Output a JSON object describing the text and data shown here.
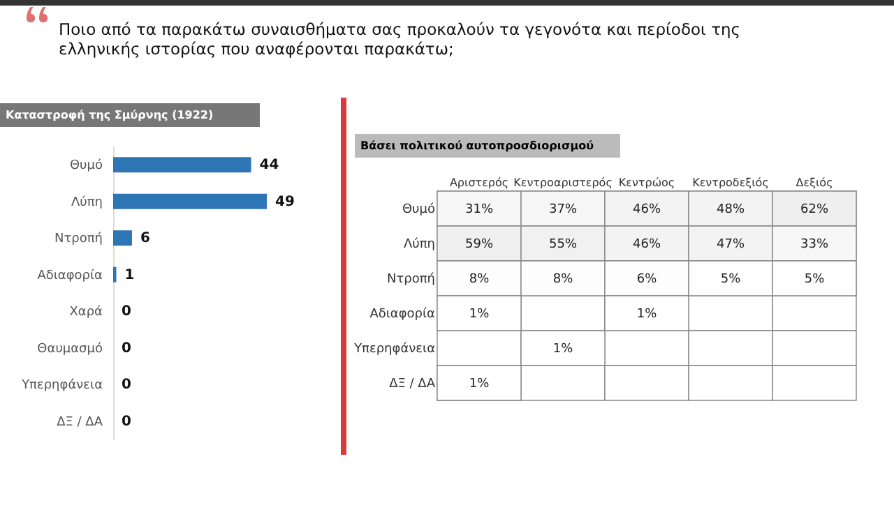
{
  "chart_data": [
    {
      "type": "bar",
      "orientation": "horizontal",
      "title": "Ποιο από τα παρακάτω συναισθήματα σας προκαλούν τα γεγονότα και περίοδοι της ελληνικής ιστορίας που αναφέρονται παρακάτω;",
      "subtitle": "Καταστροφή της Σμύρνης (1922)",
      "categories": [
        "Θυμό",
        "Λύπη",
        "Ντροπή",
        "Αδιαφορία",
        "Χαρά",
        "Θαυμασμό",
        "Υπερηφάνεια",
        "ΔΞ / ΔΑ"
      ],
      "values": [
        44,
        49,
        6,
        1,
        0,
        0,
        0,
        0
      ],
      "color": "#2e75b6",
      "data_labels": true
    },
    {
      "type": "heatmap",
      "title": "Βάσει πολιτικού αυτοπροσδιορισμού",
      "categories": [
        "Αριστερός",
        "Κεντροαριστερός",
        "Κεντρώος",
        "Κεντροδεξιός",
        "Δεξιός"
      ],
      "y_categories": [
        "Θυμό",
        "Λύπη",
        "Ντροπή",
        "Αδιαφορία",
        "Υπερηφάνεια",
        "ΔΞ / ΔΑ"
      ],
      "cells": [
        [
          31,
          37,
          46,
          48,
          62
        ],
        [
          59,
          55,
          46,
          47,
          33
        ],
        [
          8,
          8,
          6,
          5,
          5
        ],
        [
          1,
          null,
          1,
          null,
          null
        ],
        [
          null,
          1,
          null,
          null,
          null
        ],
        [
          1,
          null,
          null,
          null,
          null
        ]
      ],
      "cell_labels": [
        [
          "31%",
          "37%",
          "46%",
          "48%",
          "62%"
        ],
        [
          "59%",
          "55%",
          "46%",
          "47%",
          "33%"
        ],
        [
          "8%",
          "8%",
          "6%",
          "5%",
          "5%"
        ],
        [
          "1%",
          null,
          "1%",
          null,
          null
        ],
        [
          null,
          "1%",
          null,
          null,
          null
        ],
        [
          "1%",
          null,
          null,
          null,
          null
        ]
      ]
    }
  ]
}
